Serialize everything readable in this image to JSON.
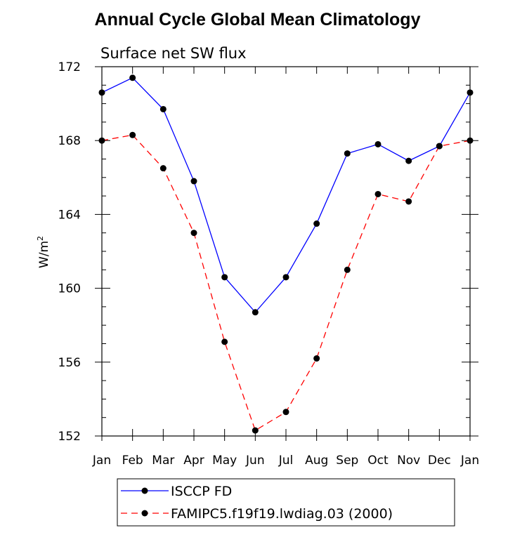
{
  "chart_data": {
    "type": "line",
    "title": "Annual Cycle Global Mean Climatology",
    "subtitle": "Surface net SW flux",
    "ylabel": "W/m",
    "ylabel_sup": "2",
    "categories": [
      "Jan",
      "Feb",
      "Mar",
      "Apr",
      "May",
      "Jun",
      "Jul",
      "Aug",
      "Sep",
      "Oct",
      "Nov",
      "Dec",
      "Jan"
    ],
    "ylim": [
      152,
      172
    ],
    "yticks": [
      152,
      156,
      160,
      164,
      168,
      172
    ],
    "series": [
      {
        "name": "ISCCP FD",
        "color": "#0000ff",
        "dash": "solid",
        "values": [
          170.6,
          171.4,
          169.7,
          165.8,
          160.6,
          158.7,
          160.6,
          163.5,
          167.3,
          167.8,
          166.9,
          167.7,
          170.6
        ]
      },
      {
        "name": "FAMIPC5.f19f19.lwdiag.03 (2000)",
        "color": "#ff0000",
        "dash": "dashed",
        "values": [
          168.0,
          168.3,
          166.5,
          163.0,
          157.1,
          152.3,
          153.3,
          156.2,
          161.0,
          165.1,
          164.7,
          167.7,
          168.0
        ]
      }
    ],
    "grid": false,
    "legend": "bottom"
  }
}
